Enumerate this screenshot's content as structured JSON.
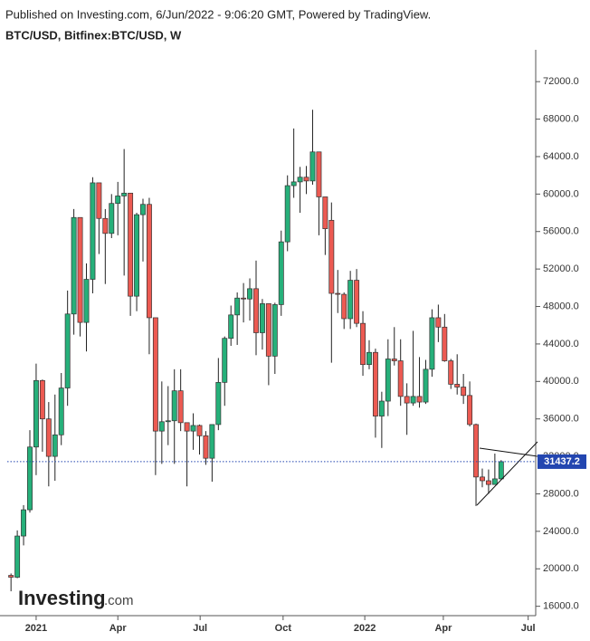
{
  "header": {
    "published": "Published on Investing.com, 6/Jun/2022 - 9:06:20 GMT, Powered by TradingView.",
    "symbol": "BTC/USD, Bitfinex:BTC/USD, W"
  },
  "logo": {
    "name": "Investing",
    "suffix": ".com"
  },
  "chart_data": {
    "type": "candlestick",
    "up_color": "#26b07a",
    "down_color": "#ec5a52",
    "open": [
      19300,
      19100,
      23500,
      26300,
      33000,
      40100,
      36000,
      32000,
      34300,
      39300,
      47200,
      57500,
      46300,
      50900,
      61200,
      57400,
      55800,
      59000,
      59800,
      60100,
      49100,
      57800,
      58900,
      46800,
      34700,
      35700,
      35800,
      39000,
      35600,
      34700,
      35300,
      34200,
      31800,
      35400,
      39900,
      44600,
      47100,
      48900,
      48800,
      49900,
      45200,
      48300,
      42700,
      48200,
      54900,
      60900,
      61300,
      61800,
      61400,
      64500,
      59700,
      57200,
      49400,
      49300,
      46700,
      50800,
      46200,
      41800,
      43100,
      36300,
      37900,
      42400,
      42200,
      38400,
      37700,
      38400,
      37800,
      41300,
      46800,
      45800,
      42200,
      39700,
      39400,
      38500,
      35400,
      29800,
      29400,
      29000,
      29600
    ],
    "high": [
      19500,
      24100,
      26800,
      34800,
      41900,
      40200,
      37800,
      38600,
      40900,
      49700,
      58400,
      57500,
      52600,
      61800,
      61200,
      58400,
      60000,
      61300,
      64800,
      60100,
      58000,
      59500,
      59600,
      46800,
      40000,
      39500,
      41300,
      41300,
      35600,
      36600,
      35400,
      34700,
      35400,
      42500,
      44800,
      48100,
      49500,
      50500,
      51000,
      52900,
      48800,
      48300,
      48400,
      56100,
      62000,
      67000,
      62900,
      63000,
      69000,
      64500,
      59700,
      59100,
      51900,
      49500,
      51800,
      52000,
      47500,
      44400,
      43500,
      38900,
      44500,
      45800,
      44500,
      39800,
      45400,
      42600,
      42300,
      47700,
      48200,
      47200,
      42400,
      42900,
      40800,
      40000,
      35500,
      30700,
      30600,
      32300,
      31600
    ],
    "low": [
      17600,
      19000,
      22500,
      26000,
      30000,
      32500,
      28800,
      29400,
      33200,
      37400,
      45000,
      44800,
      43200,
      49400,
      53600,
      50400,
      55300,
      55600,
      51300,
      47000,
      47500,
      52800,
      42900,
      30000,
      31200,
      33200,
      31200,
      34700,
      28800,
      32700,
      32200,
      31100,
      29300,
      34800,
      37400,
      43800,
      43900,
      46300,
      46500,
      42800,
      43400,
      39600,
      40800,
      47000,
      53900,
      59600,
      58000,
      60000,
      61000,
      55600,
      53500,
      42000,
      47300,
      45600,
      45600,
      45800,
      40600,
      41300,
      34000,
      32900,
      36300,
      41700,
      37400,
      34300,
      37400,
      37200,
      37600,
      40500,
      44200,
      42100,
      39200,
      38600,
      37600,
      35200,
      26700,
      28700,
      28000,
      29000,
      29500
    ],
    "close": [
      19100,
      23500,
      26300,
      33000,
      40100,
      36000,
      32000,
      34300,
      39300,
      47200,
      57500,
      46300,
      50900,
      61200,
      57400,
      55800,
      59000,
      59800,
      60100,
      49100,
      57800,
      58900,
      46800,
      34700,
      35700,
      35800,
      39000,
      35600,
      34700,
      35300,
      34200,
      31800,
      35400,
      39900,
      44600,
      47100,
      48900,
      48800,
      49900,
      45200,
      48300,
      42700,
      48200,
      54900,
      60900,
      61300,
      61800,
      61400,
      64500,
      59700,
      56300,
      49400,
      49300,
      46700,
      50800,
      46200,
      41800,
      43100,
      36300,
      37900,
      42400,
      42200,
      38400,
      37700,
      38400,
      37800,
      41300,
      46800,
      45800,
      42200,
      39700,
      39400,
      38500,
      35400,
      29800,
      29400,
      29000,
      29600,
      31437.2
    ],
    "last_price": 31437.2,
    "last_price_color": "#2346b0",
    "xlim": [
      -0.6,
      83.5
    ],
    "xticks": [
      {
        "value": 4,
        "label": "2021"
      },
      {
        "value": 17,
        "label": "Apr"
      },
      {
        "value": 30.1,
        "label": "Jul"
      },
      {
        "value": 43.3,
        "label": "Oct"
      },
      {
        "value": 56.3,
        "label": "2022"
      },
      {
        "value": 68.8,
        "label": "Apr"
      },
      {
        "value": 82.3,
        "label": "Jul"
      }
    ],
    "ylim": [
      15000,
      75400
    ],
    "yticks": [
      {
        "value": 16000,
        "label": "16000.0"
      },
      {
        "value": 20000,
        "label": "20000.0"
      },
      {
        "value": 24000,
        "label": "24000.0"
      },
      {
        "value": 28000,
        "label": "28000.0"
      },
      {
        "value": 32000,
        "label": "32000.0"
      },
      {
        "value": 36000,
        "label": "36000.0"
      },
      {
        "value": 40000,
        "label": "40000.0"
      },
      {
        "value": 44000,
        "label": "44000.0"
      },
      {
        "value": 48000,
        "label": "48000.0"
      },
      {
        "value": 52000,
        "label": "52000.0"
      },
      {
        "value": 56000,
        "label": "56000.0"
      },
      {
        "value": 60000,
        "label": "60000.0"
      },
      {
        "value": 64000,
        "label": "64000.0"
      },
      {
        "value": 68000,
        "label": "68000.0"
      },
      {
        "value": 72000,
        "label": "72000.0"
      }
    ]
  }
}
